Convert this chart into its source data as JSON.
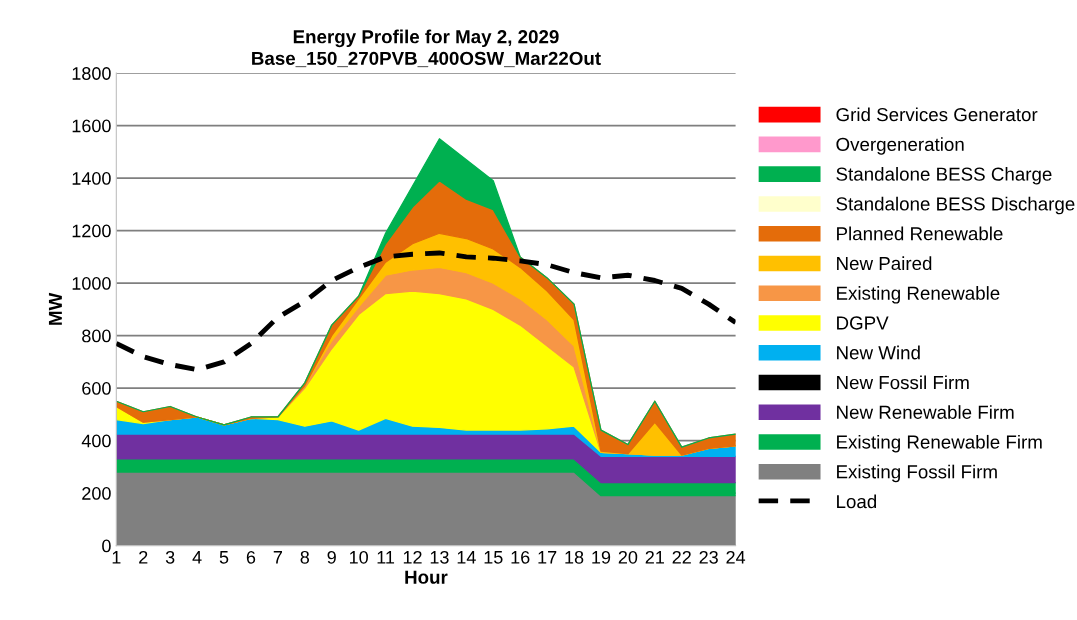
{
  "chart_data": {
    "type": "area",
    "stacked": true,
    "title": "Energy Profile for May 2, 2029\nBase_150_270PVB_400OSW_Mar22Out",
    "xlabel": "Hour",
    "ylabel": "MW",
    "categories": [
      "1",
      "2",
      "3",
      "4",
      "5",
      "6",
      "7",
      "8",
      "9",
      "10",
      "11",
      "12",
      "13",
      "14",
      "15",
      "16",
      "17",
      "18",
      "19",
      "20",
      "21",
      "22",
      "23",
      "24"
    ],
    "ylim": [
      0,
      1800
    ],
    "yticks": [
      0,
      200,
      400,
      600,
      800,
      1000,
      1200,
      1400,
      1600,
      1800
    ],
    "grid": "y",
    "legend": "right",
    "series": [
      {
        "name": "Existing Fossil Firm",
        "color": "#808080",
        "values": [
          280,
          280,
          280,
          280,
          280,
          280,
          280,
          280,
          280,
          280,
          280,
          280,
          280,
          280,
          280,
          280,
          280,
          280,
          190,
          190,
          190,
          190,
          190,
          190
        ]
      },
      {
        "name": "Existing Renewable Firm",
        "color": "#00b050",
        "values": [
          50,
          50,
          50,
          50,
          50,
          50,
          50,
          50,
          50,
          50,
          50,
          50,
          50,
          50,
          50,
          50,
          50,
          50,
          50,
          50,
          50,
          50,
          50,
          50
        ]
      },
      {
        "name": "New Renewable Firm",
        "color": "#7030a0",
        "values": [
          95,
          95,
          95,
          95,
          95,
          95,
          95,
          95,
          95,
          95,
          95,
          95,
          95,
          95,
          95,
          95,
          95,
          95,
          100,
          100,
          100,
          100,
          100,
          100
        ]
      },
      {
        "name": "New Fossil Firm",
        "color": "#000000",
        "values": [
          null,
          null,
          null,
          null,
          null,
          null,
          null,
          null,
          null,
          null,
          null,
          null,
          null,
          null,
          null,
          null,
          null,
          null,
          null,
          null,
          null,
          null,
          null,
          null
        ]
      },
      {
        "name": "New Wind",
        "color": "#00b0f0",
        "values": [
          55,
          40,
          55,
          65,
          35,
          60,
          55,
          30,
          50,
          15,
          60,
          30,
          25,
          15,
          15,
          15,
          20,
          30,
          15,
          10,
          5,
          5,
          30,
          40
        ]
      },
      {
        "name": "DGPV",
        "color": "#ffff00",
        "values": [
          50,
          5,
          0,
          0,
          0,
          0,
          10,
          145,
          275,
          440,
          475,
          515,
          510,
          500,
          460,
          400,
          315,
          225,
          0,
          0,
          0,
          0,
          0,
          0
        ]
      },
      {
        "name": "Existing Renewable",
        "color": "#f79646",
        "values": [
          0,
          0,
          0,
          0,
          0,
          0,
          0,
          10,
          30,
          30,
          70,
          80,
          100,
          100,
          100,
          100,
          100,
          80,
          0,
          0,
          0,
          0,
          0,
          0
        ]
      },
      {
        "name": "New Paired",
        "color": "#ffc000",
        "values": [
          0,
          0,
          0,
          0,
          0,
          0,
          0,
          0,
          20,
          30,
          50,
          100,
          130,
          130,
          130,
          120,
          110,
          100,
          5,
          0,
          125,
          0,
          0,
          0
        ]
      },
      {
        "name": "Planned Renewable",
        "color": "#e46c0a",
        "values": [
          20,
          40,
          50,
          0,
          0,
          5,
          0,
          10,
          40,
          10,
          70,
          140,
          200,
          150,
          150,
          40,
          50,
          60,
          80,
          35,
          80,
          30,
          40,
          45
        ]
      },
      {
        "name": "Standalone BESS Discharge",
        "color": "#ffffcc",
        "values": [
          null,
          null,
          null,
          null,
          null,
          null,
          null,
          null,
          null,
          null,
          null,
          null,
          null,
          null,
          null,
          null,
          null,
          null,
          null,
          null,
          null,
          null,
          null,
          null
        ]
      },
      {
        "name": "Standalone BESS Charge",
        "color": "#00b050",
        "values": [
          0,
          0,
          0,
          0,
          0,
          0,
          0,
          0,
          0,
          0,
          40,
          80,
          160,
          150,
          110,
          0,
          0,
          0,
          0,
          0,
          0,
          0,
          0,
          0
        ]
      },
      {
        "name": "Overgeneration",
        "color": "#ff99cc",
        "values": [
          null,
          null,
          null,
          null,
          null,
          null,
          null,
          null,
          null,
          null,
          null,
          null,
          null,
          null,
          null,
          null,
          null,
          null,
          null,
          null,
          null,
          null,
          null,
          null
        ]
      },
      {
        "name": "Grid Services Generator",
        "color": "#ff0000",
        "values": [
          null,
          null,
          null,
          null,
          null,
          null,
          null,
          null,
          null,
          null,
          null,
          null,
          null,
          null,
          null,
          null,
          null,
          null,
          null,
          null,
          null,
          null,
          null,
          null
        ]
      },
      {
        "name": "Load",
        "type": "line",
        "color": "#000000",
        "line_style": "dashed",
        "values": [
          770,
          720,
          690,
          670,
          700,
          770,
          870,
          930,
          1010,
          1060,
          1100,
          1110,
          1115,
          1100,
          1095,
          1085,
          1070,
          1040,
          1020,
          1030,
          1010,
          980,
          920,
          850
        ]
      }
    ]
  }
}
